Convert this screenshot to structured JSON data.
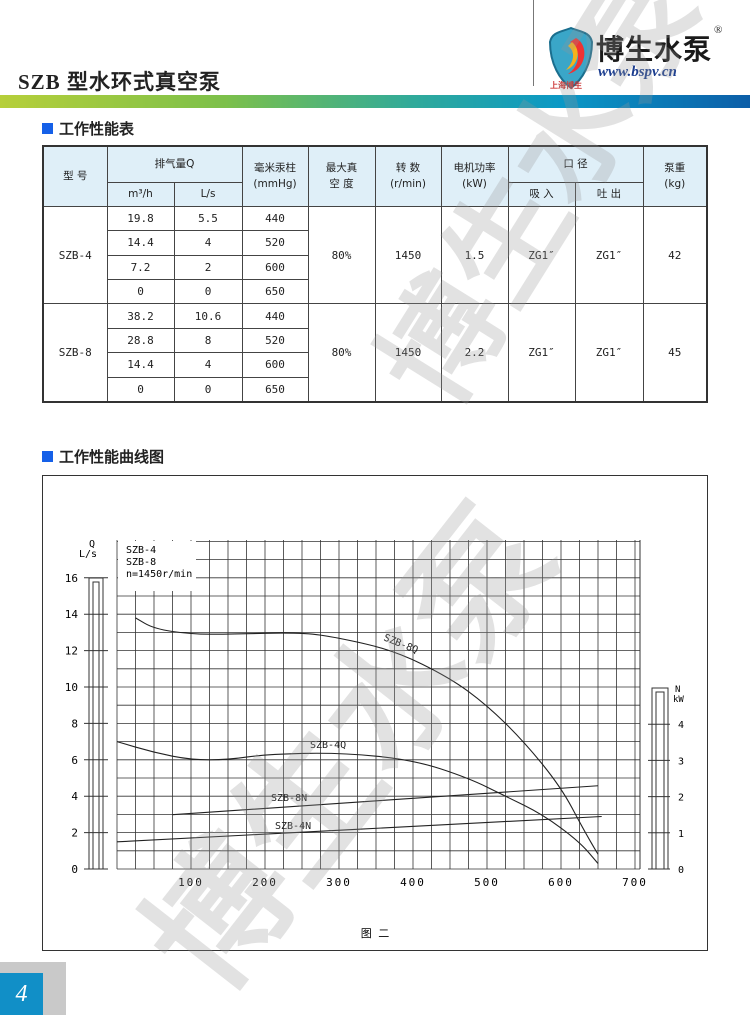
{
  "header": {
    "title": "SZB 型水环式真空泵",
    "brand": "博生水泵",
    "registered": "®",
    "url": "www.bspv.cn",
    "brand_sub": "上海博生"
  },
  "sections": {
    "table_title": "工作性能表",
    "chart_title": "工作性能曲线图"
  },
  "table": {
    "h_model": "型 号",
    "h_flow": "排气量Q",
    "h_m3h": "m³/h",
    "h_ls": "L/s",
    "h_mmhg": "毫米汞柱",
    "h_mmhg_unit": "(mmHg)",
    "h_vac": "最大真",
    "h_vac2": "空 度",
    "h_speed": "转 数",
    "h_speed_unit": "(r/min)",
    "h_power": "电机功率",
    "h_power_unit": "(kW)",
    "h_port": "口 径",
    "h_in": "吸 入",
    "h_out": "吐 出",
    "h_weight": "泵重",
    "h_weight_unit": "(kg)",
    "rows": [
      {
        "model": "SZB-4",
        "vacuum": "80%",
        "speed": "1450",
        "power": "1.5",
        "inlet": "ZG1″",
        "outlet": "ZG1″",
        "weight": "42",
        "points": [
          [
            "19.8",
            "5.5",
            "440"
          ],
          [
            "14.4",
            "4",
            "520"
          ],
          [
            "7.2",
            "2",
            "600"
          ],
          [
            "0",
            "0",
            "650"
          ]
        ]
      },
      {
        "model": "SZB-8",
        "vacuum": "80%",
        "speed": "1450",
        "power": "2.2",
        "inlet": "ZG1″",
        "outlet": "ZG1″",
        "weight": "45",
        "points": [
          [
            "38.2",
            "10.6",
            "440"
          ],
          [
            "28.8",
            "8",
            "520"
          ],
          [
            "14.4",
            "4",
            "600"
          ],
          [
            "0",
            "0",
            "650"
          ]
        ]
      }
    ]
  },
  "chart_data": {
    "type": "line",
    "caption": "图 二",
    "legend_lines": [
      "SZB-4",
      "SZB-8",
      "n=1450r/min"
    ],
    "y_left": {
      "label_top": "Q",
      "label": "L/s",
      "ticks": [
        0,
        2,
        4,
        6,
        8,
        10,
        12,
        14,
        16
      ],
      "range": [
        0,
        18
      ]
    },
    "y_right": {
      "label_top": "N",
      "label": "kW",
      "ticks": [
        0,
        1,
        2,
        3,
        4
      ]
    },
    "x": {
      "ticks": [
        100,
        200,
        300,
        400,
        500,
        600,
        700
      ],
      "range": [
        0,
        700
      ],
      "unit": "mmHg"
    },
    "grid": true,
    "series": [
      {
        "name": "SZB-8Q",
        "axis": "left",
        "points": [
          [
            25,
            13.8
          ],
          [
            50,
            13.2
          ],
          [
            100,
            12.9
          ],
          [
            150,
            12.9
          ],
          [
            250,
            13
          ],
          [
            300,
            12.7
          ],
          [
            375,
            12
          ],
          [
            450,
            10.5
          ],
          [
            500,
            9
          ],
          [
            550,
            7
          ],
          [
            600,
            4.5
          ],
          [
            630,
            2.2
          ],
          [
            650,
            0.8
          ]
        ]
      },
      {
        "name": "SZB-4Q",
        "axis": "left",
        "points": [
          [
            0,
            7
          ],
          [
            50,
            6.4
          ],
          [
            100,
            6
          ],
          [
            150,
            6
          ],
          [
            200,
            6.3
          ],
          [
            300,
            6.4
          ],
          [
            400,
            6
          ],
          [
            475,
            5
          ],
          [
            525,
            4
          ],
          [
            575,
            3
          ],
          [
            625,
            1.5
          ],
          [
            650,
            0.3
          ]
        ]
      },
      {
        "name": "SZB-8N",
        "axis": "right",
        "points": [
          [
            75,
            1.5
          ],
          [
            650,
            2.3
          ]
        ]
      },
      {
        "name": "SZB-4N",
        "axis": "right",
        "points": [
          [
            0,
            0.75
          ],
          [
            655,
            1.45
          ]
        ]
      }
    ]
  },
  "page_number": "4",
  "watermark": "博生水泵"
}
